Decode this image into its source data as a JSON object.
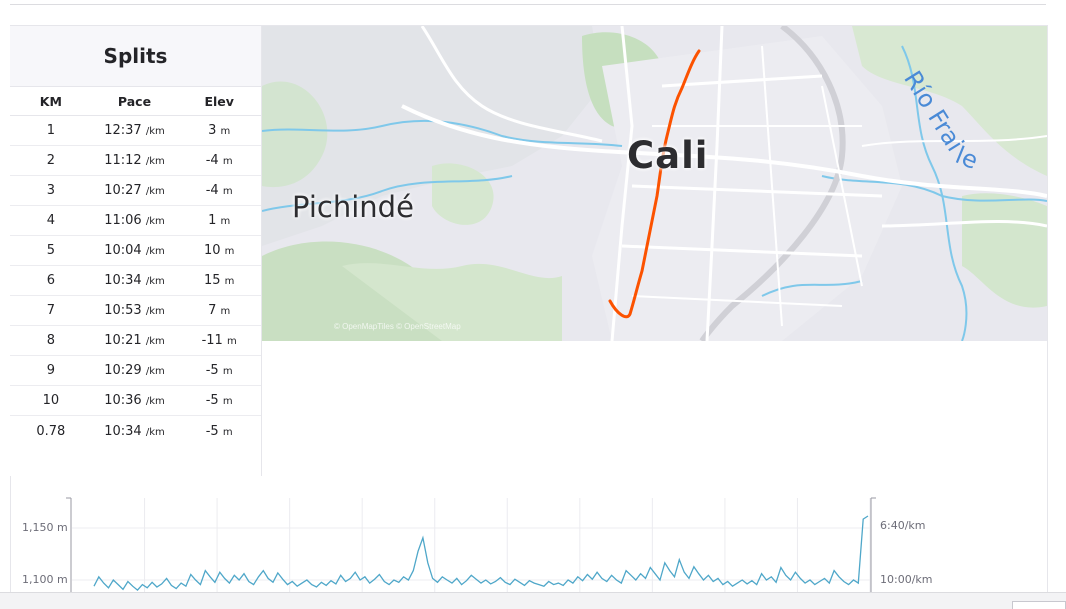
{
  "splits": {
    "title": "Splits",
    "headers": {
      "km": "KM",
      "pace": "Pace",
      "elev": "Elev"
    },
    "pace_unit": "/km",
    "elev_unit": "m",
    "rows": [
      {
        "km": "1",
        "pace": "12:37",
        "elev": "3"
      },
      {
        "km": "2",
        "pace": "11:12",
        "elev": "-4"
      },
      {
        "km": "3",
        "pace": "10:27",
        "elev": "-4"
      },
      {
        "km": "4",
        "pace": "11:06",
        "elev": "1"
      },
      {
        "km": "5",
        "pace": "10:04",
        "elev": "10"
      },
      {
        "km": "6",
        "pace": "10:34",
        "elev": "15"
      },
      {
        "km": "7",
        "pace": "10:53",
        "elev": "7"
      },
      {
        "km": "8",
        "pace": "10:21",
        "elev": "-11"
      },
      {
        "km": "9",
        "pace": "10:29",
        "elev": "-5"
      },
      {
        "km": "10",
        "pace": "10:36",
        "elev": "-5"
      },
      {
        "km": "0.78",
        "pace": "10:34",
        "elev": "-5"
      }
    ]
  },
  "map": {
    "labels": {
      "city": "Cali",
      "place": "Pichindé",
      "river": "Río Frai",
      "river2": "le"
    },
    "attribution": "© OpenMapTiles © OpenStreetMap",
    "route_color": "#fc5200",
    "water_color": "#7fc8ea",
    "park_color": "#cfe3c9"
  },
  "chart_data": {
    "type": "line",
    "y_left_ticks": [
      "1,150 m",
      "1,100 m"
    ],
    "y_right_ticks": [
      "6:40/km",
      "10:00/km"
    ],
    "series_color": "#4fa7c9",
    "series": [
      {
        "values": [
          0.1,
          0.22,
          0.14,
          0.08,
          0.18,
          0.12,
          0.06,
          0.16,
          0.1,
          0.05,
          0.12,
          0.08,
          0.15,
          0.09,
          0.13,
          0.2,
          0.11,
          0.07,
          0.14,
          0.1,
          0.25,
          0.18,
          0.12,
          0.3,
          0.22,
          0.15,
          0.28,
          0.2,
          0.14,
          0.24,
          0.18,
          0.26,
          0.16,
          0.12,
          0.22,
          0.3,
          0.2,
          0.15,
          0.27,
          0.19,
          0.12,
          0.16,
          0.1,
          0.14,
          0.18,
          0.12,
          0.09,
          0.15,
          0.11,
          0.17,
          0.13,
          0.24,
          0.16,
          0.2,
          0.28,
          0.18,
          0.22,
          0.14,
          0.19,
          0.25,
          0.16,
          0.12,
          0.18,
          0.15,
          0.22,
          0.18,
          0.3,
          0.55,
          0.72,
          0.4,
          0.2,
          0.15,
          0.22,
          0.18,
          0.14,
          0.2,
          0.12,
          0.17,
          0.24,
          0.19,
          0.14,
          0.18,
          0.13,
          0.16,
          0.21,
          0.15,
          0.12,
          0.19,
          0.15,
          0.11,
          0.17,
          0.14,
          0.12,
          0.1,
          0.16,
          0.12,
          0.14,
          0.11,
          0.18,
          0.14,
          0.22,
          0.17,
          0.25,
          0.19,
          0.28,
          0.2,
          0.16,
          0.24,
          0.18,
          0.14,
          0.3,
          0.24,
          0.18,
          0.26,
          0.2,
          0.34,
          0.26,
          0.18,
          0.4,
          0.3,
          0.22,
          0.44,
          0.28,
          0.2,
          0.35,
          0.26,
          0.18,
          0.24,
          0.16,
          0.2,
          0.12,
          0.16,
          0.1,
          0.14,
          0.18,
          0.13,
          0.17,
          0.12,
          0.26,
          0.18,
          0.22,
          0.15,
          0.34,
          0.24,
          0.18,
          0.28,
          0.2,
          0.14,
          0.18,
          0.12,
          0.16,
          0.2,
          0.14,
          0.3,
          0.22,
          0.16,
          0.12,
          0.18,
          0.14,
          0.96,
          1.0
        ]
      }
    ]
  }
}
